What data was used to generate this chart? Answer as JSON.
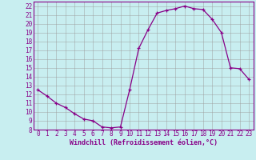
{
  "hours": [
    0,
    1,
    2,
    3,
    4,
    5,
    6,
    7,
    8,
    9,
    10,
    11,
    12,
    13,
    14,
    15,
    16,
    17,
    18,
    19,
    20,
    21,
    22,
    23
  ],
  "windchill": [
    12.5,
    11.8,
    11.0,
    10.5,
    9.8,
    9.2,
    9.0,
    8.3,
    8.2,
    8.3,
    12.5,
    17.2,
    19.3,
    21.2,
    21.5,
    21.7,
    22.0,
    21.7,
    21.6,
    20.5,
    19.0,
    15.0,
    14.9,
    13.7
  ],
  "line_color": "#880088",
  "marker": "+",
  "bg_color": "#c8eef0",
  "grid_color": "#999999",
  "axis_label_color": "#880088",
  "border_color": "#880088",
  "xlabel": "Windchill (Refroidissement éolien,°C)",
  "ylim": [
    8,
    22.5
  ],
  "xlim": [
    -0.5,
    23.5
  ],
  "yticks": [
    8,
    9,
    10,
    11,
    12,
    13,
    14,
    15,
    16,
    17,
    18,
    19,
    20,
    21,
    22
  ],
  "xticks": [
    0,
    1,
    2,
    3,
    4,
    5,
    6,
    7,
    8,
    9,
    10,
    11,
    12,
    13,
    14,
    15,
    16,
    17,
    18,
    19,
    20,
    21,
    22,
    23
  ],
  "tick_fontsize": 5.5,
  "xlabel_fontsize": 6.0
}
